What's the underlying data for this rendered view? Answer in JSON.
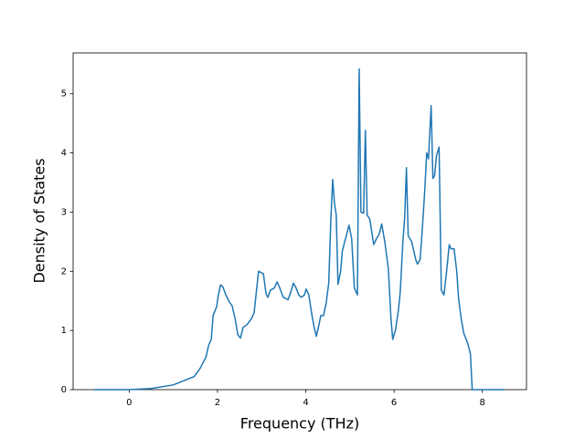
{
  "chart_data": {
    "type": "line",
    "xlabel": "Frequency (THz)",
    "ylabel": "Density of States",
    "x": [
      -0.8,
      0,
      0.5,
      1.0,
      1.47,
      1.6,
      1.74,
      1.8,
      1.86,
      1.9,
      1.98,
      2.02,
      2.07,
      2.12,
      2.19,
      2.27,
      2.33,
      2.4,
      2.46,
      2.52,
      2.58,
      2.67,
      2.77,
      2.83,
      2.93,
      3.04,
      3.1,
      3.14,
      3.2,
      3.29,
      3.35,
      3.41,
      3.49,
      3.6,
      3.66,
      3.72,
      3.78,
      3.84,
      3.9,
      3.97,
      4.01,
      4.07,
      4.13,
      4.19,
      4.24,
      4.3,
      4.34,
      4.4,
      4.46,
      4.52,
      4.57,
      4.61,
      4.65,
      4.69,
      4.73,
      4.79,
      4.83,
      4.9,
      4.98,
      5.04,
      5.1,
      5.17,
      5.21,
      5.25,
      5.31,
      5.35,
      5.39,
      5.45,
      5.54,
      5.6,
      5.66,
      5.72,
      5.79,
      5.87,
      5.93,
      5.97,
      6.03,
      6.1,
      6.14,
      6.2,
      6.24,
      6.28,
      6.32,
      6.4,
      6.49,
      6.53,
      6.59,
      6.63,
      6.69,
      6.74,
      6.78,
      6.84,
      6.88,
      6.92,
      6.96,
      7.02,
      7.07,
      7.13,
      7.19,
      7.25,
      7.29,
      7.36,
      7.42,
      7.46,
      7.52,
      7.58,
      7.67,
      7.73,
      7.77,
      8.51
    ],
    "series": [
      {
        "color": "#1f77b4",
        "values": [
          0,
          0,
          0.02,
          0.08,
          0.22,
          0.35,
          0.55,
          0.75,
          0.85,
          1.25,
          1.4,
          1.6,
          1.77,
          1.74,
          1.6,
          1.48,
          1.42,
          1.2,
          0.93,
          0.87,
          1.05,
          1.1,
          1.2,
          1.3,
          2.0,
          1.96,
          1.62,
          1.56,
          1.68,
          1.72,
          1.82,
          1.72,
          1.56,
          1.52,
          1.65,
          1.8,
          1.72,
          1.6,
          1.56,
          1.6,
          1.7,
          1.6,
          1.3,
          1.05,
          0.9,
          1.1,
          1.25,
          1.25,
          1.45,
          1.8,
          2.9,
          3.55,
          3.15,
          2.95,
          1.78,
          2.0,
          2.35,
          2.55,
          2.78,
          2.55,
          1.72,
          1.6,
          5.42,
          3.0,
          2.98,
          4.38,
          2.95,
          2.88,
          2.45,
          2.55,
          2.62,
          2.8,
          2.5,
          2.05,
          1.2,
          0.85,
          1.0,
          1.35,
          1.65,
          2.5,
          2.9,
          3.75,
          2.6,
          2.5,
          2.2,
          2.12,
          2.2,
          2.6,
          3.3,
          4.0,
          3.9,
          4.8,
          3.57,
          3.62,
          3.95,
          4.1,
          1.68,
          1.6,
          2.0,
          2.45,
          2.38,
          2.38,
          2.0,
          1.55,
          1.2,
          0.95,
          0.78,
          0.6,
          0,
          0
        ]
      }
    ],
    "xlim": [
      -1.27,
      9.0
    ],
    "ylim": [
      0,
      5.69
    ],
    "xticks": [
      0,
      2,
      4,
      6,
      8
    ],
    "yticks": [
      0,
      1,
      2,
      3,
      4,
      5
    ]
  }
}
